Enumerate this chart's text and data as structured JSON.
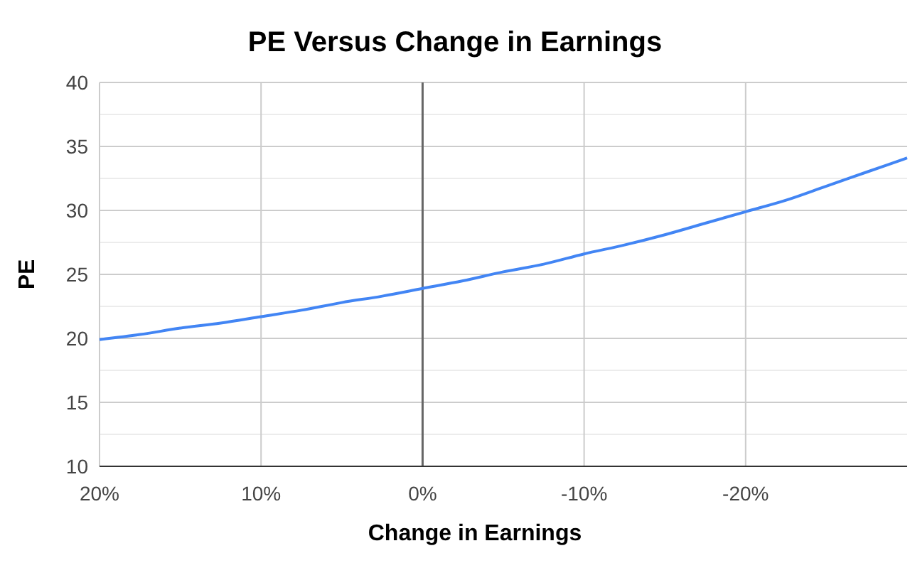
{
  "chart_data": {
    "type": "line",
    "title": "PE Versus Change in Earnings",
    "xlabel": "Change in Earnings",
    "ylabel": "PE",
    "x": [
      20,
      17.5,
      15,
      12.5,
      10,
      7.5,
      5,
      2.5,
      0,
      -2.5,
      -5,
      -7.5,
      -10,
      -12.5,
      -15,
      -17.5,
      -20,
      -22.5,
      -25,
      -27.5,
      -30
    ],
    "series": [
      {
        "color": "#4285f4",
        "values": [
          19.9,
          20.3,
          20.8,
          21.2,
          21.7,
          22.2,
          22.8,
          23.3,
          23.9,
          24.5,
          25.2,
          25.8,
          26.6,
          27.3,
          28.1,
          29.0,
          29.9,
          30.8,
          31.9,
          33.0,
          34.1
        ]
      }
    ],
    "xlim": [
      20,
      -30
    ],
    "xticks": [
      {
        "value": 20,
        "label": "20%"
      },
      {
        "value": 10,
        "label": "10%"
      },
      {
        "value": 0,
        "label": "0%"
      },
      {
        "value": -10,
        "label": "-10%"
      },
      {
        "value": -20,
        "label": "-20%"
      }
    ],
    "ylim": [
      10,
      40
    ],
    "yticks": [
      10,
      {
        "value": 12.5,
        "label": null
      },
      15,
      {
        "value": 17.5,
        "label": null
      },
      20,
      {
        "value": 22.5,
        "label": null
      },
      25,
      {
        "value": 27.5,
        "label": null
      },
      30,
      {
        "value": 32.5,
        "label": null
      },
      35,
      {
        "value": 37.5,
        "label": null
      },
      40
    ],
    "ref_lines": [
      {
        "axis": "x",
        "value": 0,
        "color": "#666666"
      }
    ],
    "grid": true,
    "marker": "none",
    "line_style": "solid"
  }
}
